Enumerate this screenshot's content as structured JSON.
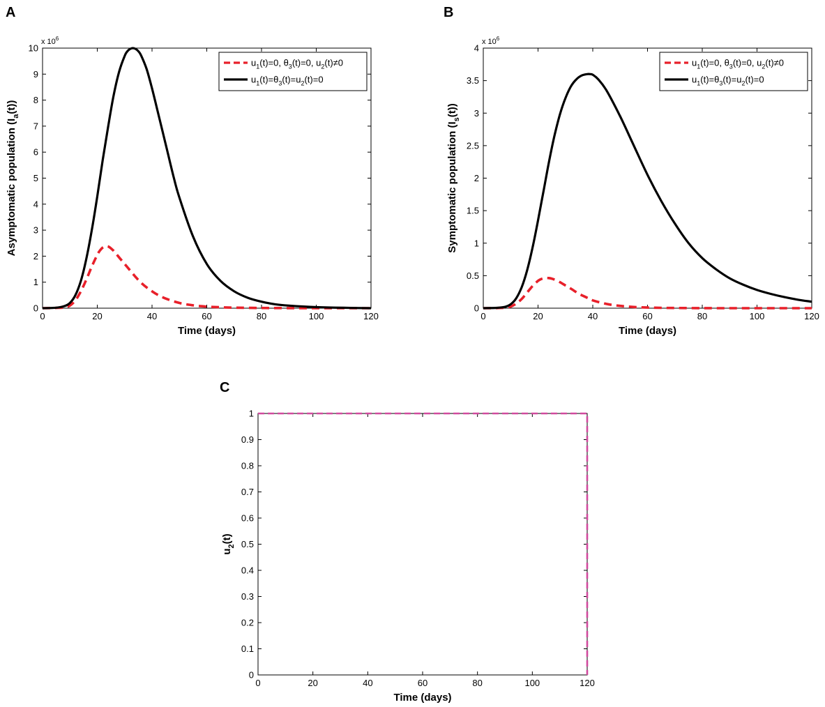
{
  "figure": {
    "panels": [
      "A",
      "B",
      "C"
    ]
  },
  "chart_data": [
    {
      "panel": "A",
      "type": "line",
      "xlabel": "Time (days)",
      "ylabel": "Asymptomatic population (I",
      "ylabel_sub": "a",
      "ylabel_end": "(t))",
      "y_multiplier": "x 10",
      "y_multiplier_exp": "6",
      "xlim": [
        0,
        120
      ],
      "ylim": [
        0,
        10
      ],
      "xticks": [
        0,
        20,
        40,
        60,
        80,
        100,
        120
      ],
      "yticks": [
        0,
        1,
        2,
        3,
        4,
        5,
        6,
        7,
        8,
        9,
        10
      ],
      "legend_position": "top-right",
      "series": [
        {
          "name": "u1(t)=0, θ3(t)=0, u2(t)≠0",
          "legend_parts": [
            "u",
            "1",
            "(t)=0, θ",
            "3",
            "(t)=0, u",
            "2",
            "(t)≠0"
          ],
          "color": "#e8202a",
          "style": "dashed",
          "x": [
            0,
            5,
            8,
            10,
            12,
            14,
            16,
            18,
            20,
            21,
            22,
            23,
            24,
            25,
            26,
            28,
            30,
            32,
            34,
            36,
            38,
            40,
            42,
            45,
            50,
            55,
            60,
            65,
            70,
            80,
            90,
            100,
            110,
            120
          ],
          "y": [
            0,
            0.01,
            0.03,
            0.1,
            0.3,
            0.65,
            1.1,
            1.6,
            2.05,
            2.22,
            2.33,
            2.38,
            2.37,
            2.3,
            2.2,
            1.95,
            1.7,
            1.45,
            1.2,
            0.98,
            0.8,
            0.65,
            0.52,
            0.37,
            0.2,
            0.11,
            0.06,
            0.035,
            0.02,
            0.008,
            0.004,
            0.002,
            0.001,
            0
          ]
        },
        {
          "name": "u1(t)=θ3(t)=u2(t)=0",
          "legend_parts": [
            "u",
            "1",
            "(t)=θ",
            "3",
            "(t)=u",
            "2",
            "(t)=0"
          ],
          "color": "#000000",
          "style": "solid",
          "x": [
            0,
            5,
            8,
            10,
            12,
            14,
            16,
            18,
            20,
            22,
            24,
            26,
            28,
            30,
            31,
            32,
            33,
            34,
            35,
            36,
            38,
            40,
            42,
            45,
            48,
            50,
            55,
            60,
            65,
            70,
            75,
            80,
            85,
            90,
            100,
            110,
            120
          ],
          "y": [
            0,
            0.02,
            0.08,
            0.2,
            0.5,
            1.05,
            1.9,
            3.0,
            4.3,
            5.7,
            7.0,
            8.2,
            9.1,
            9.7,
            9.88,
            9.97,
            10.0,
            9.97,
            9.88,
            9.72,
            9.2,
            8.45,
            7.6,
            6.3,
            5.0,
            4.25,
            2.75,
            1.7,
            1.05,
            0.65,
            0.4,
            0.25,
            0.15,
            0.1,
            0.04,
            0.015,
            0
          ]
        }
      ]
    },
    {
      "panel": "B",
      "type": "line",
      "xlabel": "Time (days)",
      "ylabel": "Symptomatic population (I",
      "ylabel_sub": "s",
      "ylabel_end": "(t))",
      "y_multiplier": "x 10",
      "y_multiplier_exp": "6",
      "xlim": [
        0,
        120
      ],
      "ylim": [
        0,
        4
      ],
      "xticks": [
        0,
        20,
        40,
        60,
        80,
        100,
        120
      ],
      "yticks": [
        0,
        0.5,
        1,
        1.5,
        2,
        2.5,
        3,
        3.5,
        4
      ],
      "legend_position": "top-right",
      "series": [
        {
          "name": "u1(t)=0, θ3(t)=0, u2(t)≠0",
          "legend_parts": [
            "u",
            "1",
            "(t)=0, θ",
            "3",
            "(t)=0, u",
            "2",
            "(t)≠0"
          ],
          "color": "#e8202a",
          "style": "dashed",
          "x": [
            0,
            5,
            8,
            10,
            12,
            14,
            16,
            18,
            20,
            21,
            22,
            23,
            24,
            25,
            26,
            28,
            30,
            32,
            35,
            38,
            40,
            45,
            50,
            55,
            60,
            65,
            70,
            80,
            90,
            100,
            110,
            120
          ],
          "y": [
            0,
            0.002,
            0.008,
            0.025,
            0.07,
            0.14,
            0.24,
            0.34,
            0.42,
            0.445,
            0.46,
            0.465,
            0.463,
            0.455,
            0.44,
            0.4,
            0.35,
            0.3,
            0.22,
            0.16,
            0.12,
            0.065,
            0.035,
            0.018,
            0.01,
            0.005,
            0.003,
            0.001,
            0,
            0,
            0,
            0
          ]
        },
        {
          "name": "u1(t)=θ3(t)=u2(t)=0",
          "legend_parts": [
            "u",
            "1",
            "(t)=θ",
            "3",
            "(t)=u",
            "2",
            "(t)=0"
          ],
          "color": "#000000",
          "style": "solid",
          "x": [
            0,
            5,
            8,
            10,
            12,
            14,
            16,
            18,
            20,
            22,
            24,
            26,
            28,
            30,
            32,
            34,
            36,
            38,
            39,
            40,
            42,
            45,
            50,
            55,
            60,
            65,
            70,
            75,
            80,
            85,
            90,
            95,
            100,
            105,
            110,
            115,
            120
          ],
          "y": [
            0,
            0.005,
            0.02,
            0.06,
            0.15,
            0.32,
            0.58,
            0.93,
            1.35,
            1.8,
            2.25,
            2.65,
            2.98,
            3.23,
            3.41,
            3.52,
            3.58,
            3.6,
            3.6,
            3.59,
            3.52,
            3.35,
            2.95,
            2.5,
            2.05,
            1.65,
            1.3,
            1.0,
            0.77,
            0.6,
            0.46,
            0.36,
            0.28,
            0.22,
            0.17,
            0.13,
            0.1
          ]
        }
      ]
    },
    {
      "panel": "C",
      "type": "line",
      "xlabel": "Time (days)",
      "ylabel": "u",
      "ylabel_sub": "2",
      "ylabel_end": "(t)",
      "xlim": [
        0,
        120
      ],
      "ylim": [
        0,
        1
      ],
      "xticks": [
        0,
        20,
        40,
        60,
        80,
        100,
        120
      ],
      "yticks": [
        0,
        0.1,
        0.2,
        0.3,
        0.4,
        0.5,
        0.6,
        0.7,
        0.8,
        0.9,
        1
      ],
      "series": [
        {
          "name": "u2(t)",
          "color": "#d14a9e",
          "style": "dashed",
          "x": [
            0,
            120,
            120
          ],
          "y": [
            1,
            1,
            0
          ]
        }
      ]
    }
  ]
}
